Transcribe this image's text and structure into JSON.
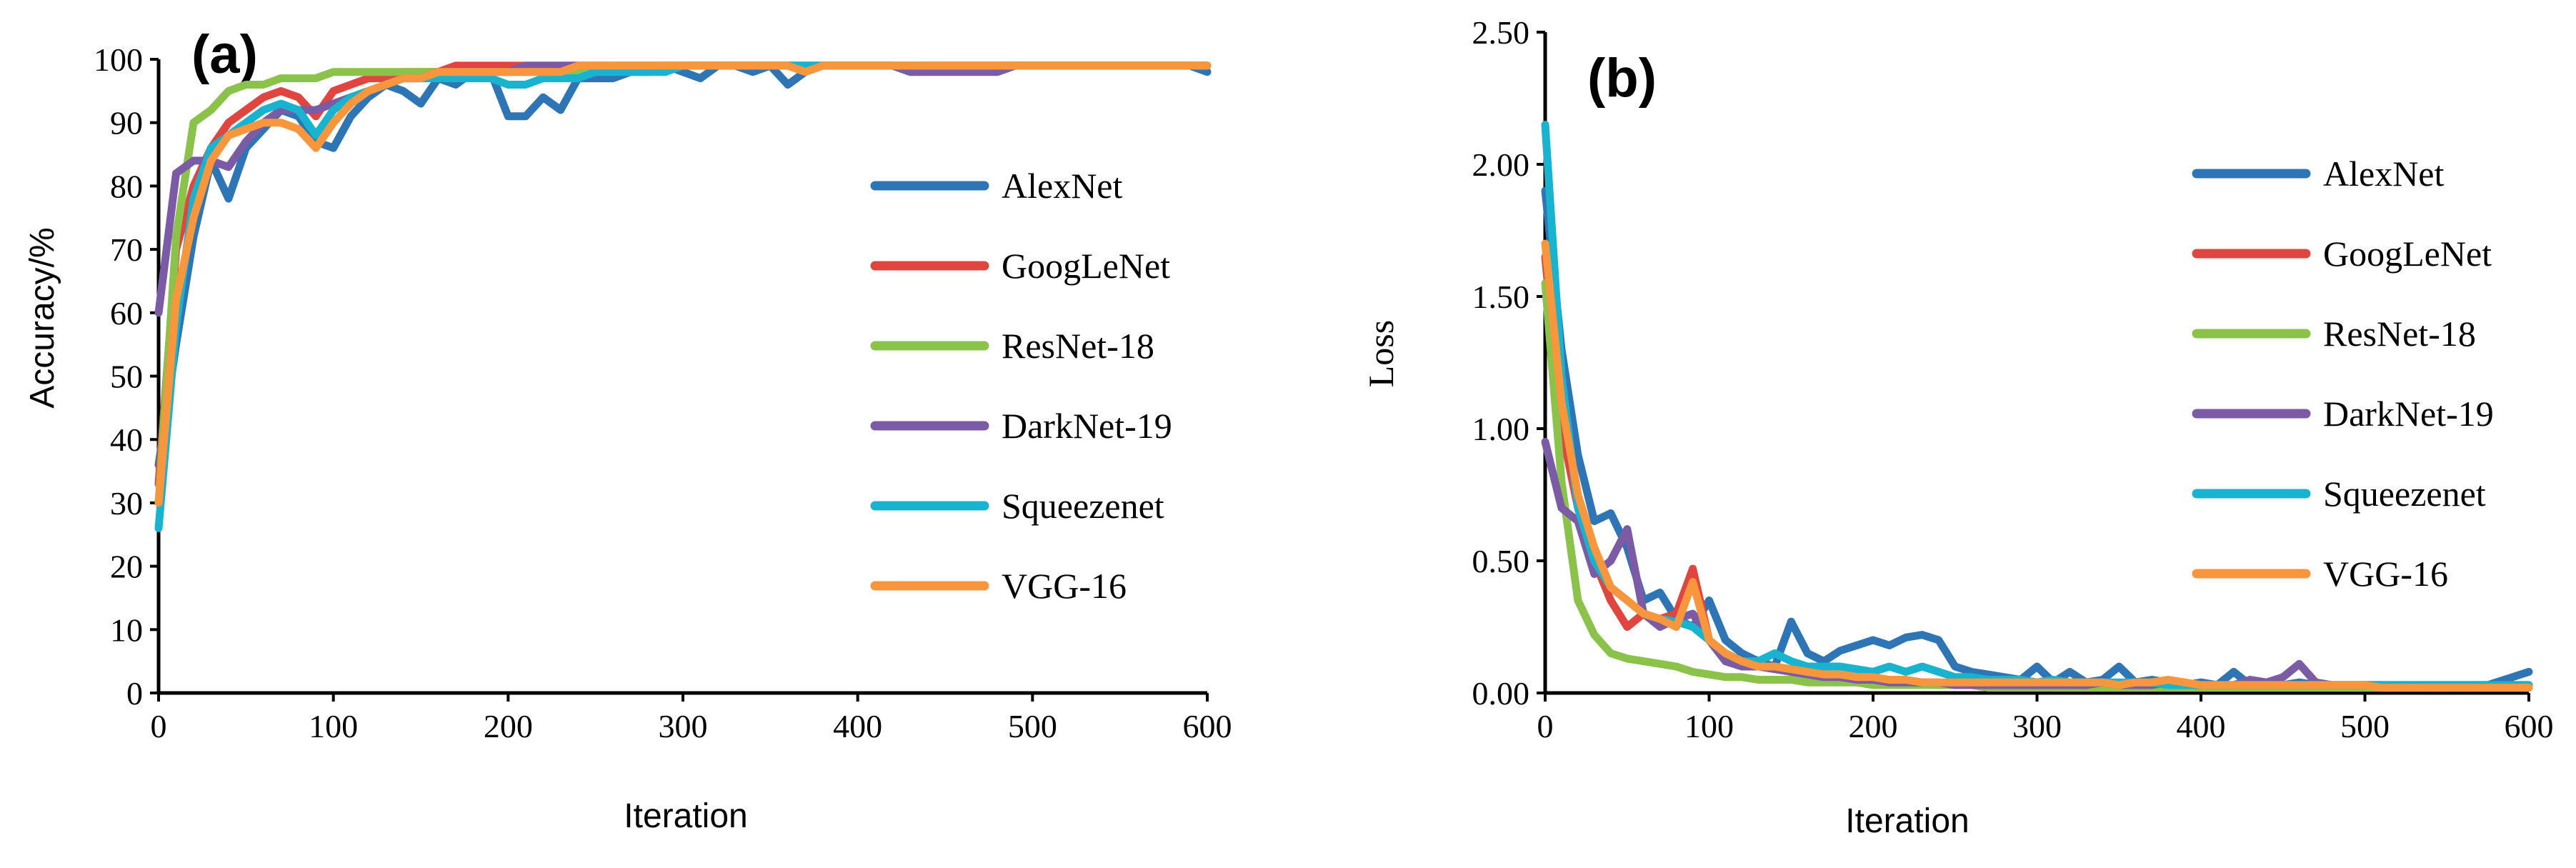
{
  "colors": {
    "AlexNet": "#2e75b6",
    "GoogLeNet": "#e0463f",
    "ResNet-18": "#8bc34a",
    "DarkNet-19": "#7b5aa6",
    "Squeezenet": "#17b3cf",
    "VGG-16": "#f7963c"
  },
  "chart_data": [
    {
      "type": "line",
      "panel_label": "(a)",
      "title": "",
      "xlabel": "Iteration",
      "ylabel": "Accuracy/%",
      "xlim": [
        0,
        600
      ],
      "ylim": [
        0,
        100
      ],
      "xticks": [
        "0",
        "100",
        "200",
        "300",
        "400",
        "500",
        "600"
      ],
      "yticks": [
        "0",
        "10",
        "20",
        "30",
        "40",
        "50",
        "60",
        "70",
        "80",
        "90",
        "100"
      ],
      "legend": [
        "AlexNet",
        "GoogLeNet",
        "ResNet-18",
        "DarkNet-19",
        "Squeezenet",
        "VGG-16"
      ],
      "legend_position": "right",
      "x": [
        0,
        10,
        20,
        30,
        40,
        50,
        60,
        70,
        80,
        90,
        100,
        110,
        120,
        130,
        140,
        150,
        160,
        170,
        180,
        190,
        200,
        210,
        220,
        230,
        240,
        250,
        260,
        270,
        280,
        290,
        300,
        310,
        320,
        330,
        340,
        350,
        360,
        370,
        380,
        390,
        400,
        410,
        420,
        430,
        440,
        450,
        460,
        470,
        480,
        490,
        500,
        510,
        520,
        530,
        540,
        550,
        560,
        570,
        580,
        590,
        600
      ],
      "series": [
        {
          "name": "AlexNet",
          "values": [
            36,
            55,
            72,
            84,
            78,
            86,
            89,
            92,
            91,
            87,
            86,
            91,
            94,
            96,
            95,
            93,
            97,
            96,
            98,
            98,
            91,
            91,
            94,
            92,
            97,
            97,
            97,
            98,
            98,
            99,
            98,
            97,
            99,
            99,
            98,
            99,
            96,
            98,
            99,
            99,
            99,
            99,
            99,
            98,
            99,
            99,
            99,
            99,
            99,
            99,
            99,
            99,
            99,
            99,
            99,
            99,
            99,
            99,
            99,
            99,
            98
          ]
        },
        {
          "name": "GoogLeNet",
          "values": [
            33,
            70,
            80,
            86,
            90,
            92,
            94,
            95,
            94,
            91,
            95,
            96,
            97,
            97,
            98,
            98,
            98,
            99,
            99,
            99,
            99,
            99,
            99,
            99,
            99,
            99,
            99,
            99,
            99,
            99,
            99,
            99,
            99,
            99,
            99,
            99,
            99,
            99,
            99,
            99,
            99,
            99,
            99,
            99,
            99,
            99,
            99,
            99,
            99,
            99,
            99,
            99,
            99,
            99,
            99,
            99,
            99,
            99,
            99,
            99,
            99
          ]
        },
        {
          "name": "ResNet-18",
          "values": [
            30,
            72,
            90,
            92,
            95,
            96,
            96,
            97,
            97,
            97,
            98,
            98,
            98,
            98,
            98,
            98,
            98,
            98,
            98,
            98,
            98,
            98,
            98,
            98,
            98,
            98,
            99,
            99,
            99,
            99,
            99,
            99,
            99,
            99,
            99,
            99,
            99,
            99,
            99,
            99,
            99,
            99,
            99,
            99,
            99,
            99,
            99,
            99,
            99,
            99,
            99,
            99,
            99,
            99,
            99,
            99,
            99,
            99,
            99,
            99,
            99
          ]
        },
        {
          "name": "DarkNet-19",
          "values": [
            60,
            82,
            84,
            84,
            83,
            87,
            90,
            92,
            92,
            92,
            93,
            94,
            95,
            96,
            97,
            97,
            98,
            98,
            98,
            98,
            98,
            99,
            99,
            99,
            99,
            99,
            99,
            99,
            99,
            99,
            99,
            99,
            99,
            99,
            99,
            99,
            99,
            99,
            99,
            99,
            99,
            99,
            99,
            98,
            98,
            98,
            98,
            98,
            98,
            99,
            99,
            99,
            99,
            99,
            99,
            99,
            99,
            99,
            99,
            99,
            99
          ]
        },
        {
          "name": "Squeezenet",
          "values": [
            26,
            58,
            78,
            86,
            88,
            90,
            92,
            93,
            92,
            88,
            92,
            94,
            95,
            96,
            97,
            97,
            97,
            97,
            97,
            97,
            96,
            96,
            97,
            97,
            97,
            98,
            98,
            98,
            98,
            98,
            99,
            99,
            99,
            99,
            99,
            99,
            99,
            99,
            99,
            99,
            99,
            99,
            99,
            99,
            99,
            99,
            99,
            99,
            99,
            99,
            99,
            99,
            99,
            99,
            99,
            99,
            99,
            99,
            99,
            99,
            99
          ]
        },
        {
          "name": "VGG-16",
          "values": [
            30,
            62,
            75,
            84,
            88,
            89,
            90,
            90,
            89,
            86,
            90,
            93,
            95,
            96,
            97,
            97,
            98,
            98,
            98,
            98,
            98,
            98,
            98,
            98,
            99,
            99,
            99,
            99,
            99,
            99,
            99,
            99,
            99,
            99,
            99,
            99,
            99,
            98,
            99,
            99,
            99,
            99,
            99,
            99,
            99,
            99,
            99,
            99,
            99,
            99,
            99,
            99,
            99,
            99,
            99,
            99,
            99,
            99,
            99,
            99,
            99
          ]
        }
      ]
    },
    {
      "type": "line",
      "panel_label": "(b)",
      "title": "",
      "xlabel": "Iteration",
      "ylabel": "Loss",
      "xlim": [
        0,
        600
      ],
      "ylim": [
        0,
        2.5
      ],
      "xticks": [
        "0",
        "100",
        "200",
        "300",
        "400",
        "500",
        "600"
      ],
      "yticks": [
        "0.00",
        "0.50",
        "1.00",
        "1.50",
        "2.00",
        "2.50"
      ],
      "legend": [
        "AlexNet",
        "GoogLeNet",
        "ResNet-18",
        "DarkNet-19",
        "Squeezenet",
        "VGG-16"
      ],
      "legend_position": "right",
      "x": [
        0,
        10,
        20,
        30,
        40,
        50,
        60,
        70,
        80,
        90,
        100,
        110,
        120,
        130,
        140,
        150,
        160,
        170,
        180,
        190,
        200,
        210,
        220,
        230,
        240,
        250,
        260,
        270,
        280,
        290,
        300,
        310,
        320,
        330,
        340,
        350,
        360,
        370,
        380,
        390,
        400,
        410,
        420,
        430,
        440,
        450,
        460,
        470,
        480,
        490,
        500,
        510,
        520,
        530,
        540,
        550,
        560,
        570,
        580,
        590,
        600
      ],
      "series": [
        {
          "name": "AlexNet",
          "values": [
            1.9,
            1.3,
            0.9,
            0.65,
            0.68,
            0.55,
            0.35,
            0.38,
            0.28,
            0.25,
            0.35,
            0.2,
            0.15,
            0.12,
            0.1,
            0.27,
            0.15,
            0.12,
            0.16,
            0.18,
            0.2,
            0.18,
            0.21,
            0.22,
            0.2,
            0.1,
            0.08,
            0.07,
            0.06,
            0.05,
            0.1,
            0.04,
            0.08,
            0.04,
            0.05,
            0.1,
            0.04,
            0.05,
            0.04,
            0.03,
            0.04,
            0.03,
            0.08,
            0.03,
            0.04,
            0.03,
            0.04,
            0.03,
            0.03,
            0.03,
            0.03,
            0.03,
            0.02,
            0.03,
            0.02,
            0.02,
            0.03,
            0.02,
            0.04,
            0.06,
            0.08
          ]
        },
        {
          "name": "GoogLeNet",
          "values": [
            1.65,
            1.0,
            0.7,
            0.5,
            0.35,
            0.25,
            0.3,
            0.28,
            0.3,
            0.47,
            0.2,
            0.15,
            0.12,
            0.1,
            0.1,
            0.08,
            0.07,
            0.06,
            0.06,
            0.05,
            0.05,
            0.04,
            0.04,
            0.04,
            0.03,
            0.03,
            0.03,
            0.03,
            0.03,
            0.03,
            0.03,
            0.02,
            0.02,
            0.02,
            0.02,
            0.02,
            0.02,
            0.02,
            0.02,
            0.02,
            0.02,
            0.02,
            0.02,
            0.02,
            0.02,
            0.02,
            0.02,
            0.02,
            0.02,
            0.02,
            0.02,
            0.02,
            0.02,
            0.02,
            0.02,
            0.02,
            0.02,
            0.02,
            0.02,
            0.02,
            0.02
          ]
        },
        {
          "name": "ResNet-18",
          "values": [
            1.55,
            0.8,
            0.35,
            0.22,
            0.15,
            0.13,
            0.12,
            0.11,
            0.1,
            0.08,
            0.07,
            0.06,
            0.06,
            0.05,
            0.05,
            0.05,
            0.04,
            0.04,
            0.04,
            0.04,
            0.03,
            0.03,
            0.03,
            0.03,
            0.03,
            0.03,
            0.03,
            0.02,
            0.02,
            0.02,
            0.02,
            0.02,
            0.02,
            0.02,
            0.02,
            0.02,
            0.02,
            0.02,
            0.02,
            0.02,
            0.02,
            0.02,
            0.02,
            0.02,
            0.02,
            0.02,
            0.02,
            0.02,
            0.02,
            0.02,
            0.02,
            0.02,
            0.02,
            0.02,
            0.02,
            0.02,
            0.02,
            0.02,
            0.02,
            0.02,
            0.02
          ]
        },
        {
          "name": "DarkNet-19",
          "values": [
            0.95,
            0.7,
            0.65,
            0.45,
            0.5,
            0.62,
            0.3,
            0.25,
            0.28,
            0.3,
            0.2,
            0.12,
            0.1,
            0.1,
            0.09,
            0.08,
            0.07,
            0.06,
            0.06,
            0.05,
            0.05,
            0.04,
            0.04,
            0.04,
            0.04,
            0.03,
            0.03,
            0.03,
            0.03,
            0.03,
            0.03,
            0.03,
            0.03,
            0.03,
            0.04,
            0.03,
            0.03,
            0.03,
            0.04,
            0.03,
            0.03,
            0.03,
            0.03,
            0.05,
            0.04,
            0.06,
            0.11,
            0.04,
            0.03,
            0.03,
            0.03,
            0.03,
            0.03,
            0.03,
            0.03,
            0.03,
            0.03,
            0.03,
            0.03,
            0.03,
            0.03
          ]
        },
        {
          "name": "Squeezenet",
          "values": [
            2.15,
            1.2,
            0.7,
            0.5,
            0.4,
            0.35,
            0.3,
            0.28,
            0.27,
            0.25,
            0.2,
            0.15,
            0.12,
            0.12,
            0.15,
            0.12,
            0.1,
            0.1,
            0.1,
            0.09,
            0.08,
            0.1,
            0.08,
            0.1,
            0.08,
            0.06,
            0.06,
            0.05,
            0.05,
            0.05,
            0.04,
            0.05,
            0.04,
            0.04,
            0.04,
            0.04,
            0.04,
            0.04,
            0.03,
            0.03,
            0.03,
            0.03,
            0.03,
            0.03,
            0.03,
            0.03,
            0.03,
            0.03,
            0.03,
            0.03,
            0.03,
            0.03,
            0.03,
            0.03,
            0.03,
            0.03,
            0.03,
            0.03,
            0.03,
            0.03,
            0.03
          ]
        },
        {
          "name": "VGG-16",
          "values": [
            1.7,
            1.1,
            0.75,
            0.55,
            0.4,
            0.35,
            0.3,
            0.28,
            0.25,
            0.42,
            0.2,
            0.15,
            0.12,
            0.1,
            0.1,
            0.09,
            0.08,
            0.07,
            0.07,
            0.06,
            0.06,
            0.05,
            0.05,
            0.04,
            0.04,
            0.04,
            0.04,
            0.04,
            0.04,
            0.04,
            0.04,
            0.04,
            0.04,
            0.04,
            0.04,
            0.03,
            0.04,
            0.04,
            0.05,
            0.04,
            0.03,
            0.03,
            0.03,
            0.03,
            0.03,
            0.03,
            0.03,
            0.03,
            0.03,
            0.03,
            0.03,
            0.02,
            0.02,
            0.02,
            0.02,
            0.02,
            0.02,
            0.02,
            0.02,
            0.02,
            0.02
          ]
        }
      ]
    }
  ]
}
